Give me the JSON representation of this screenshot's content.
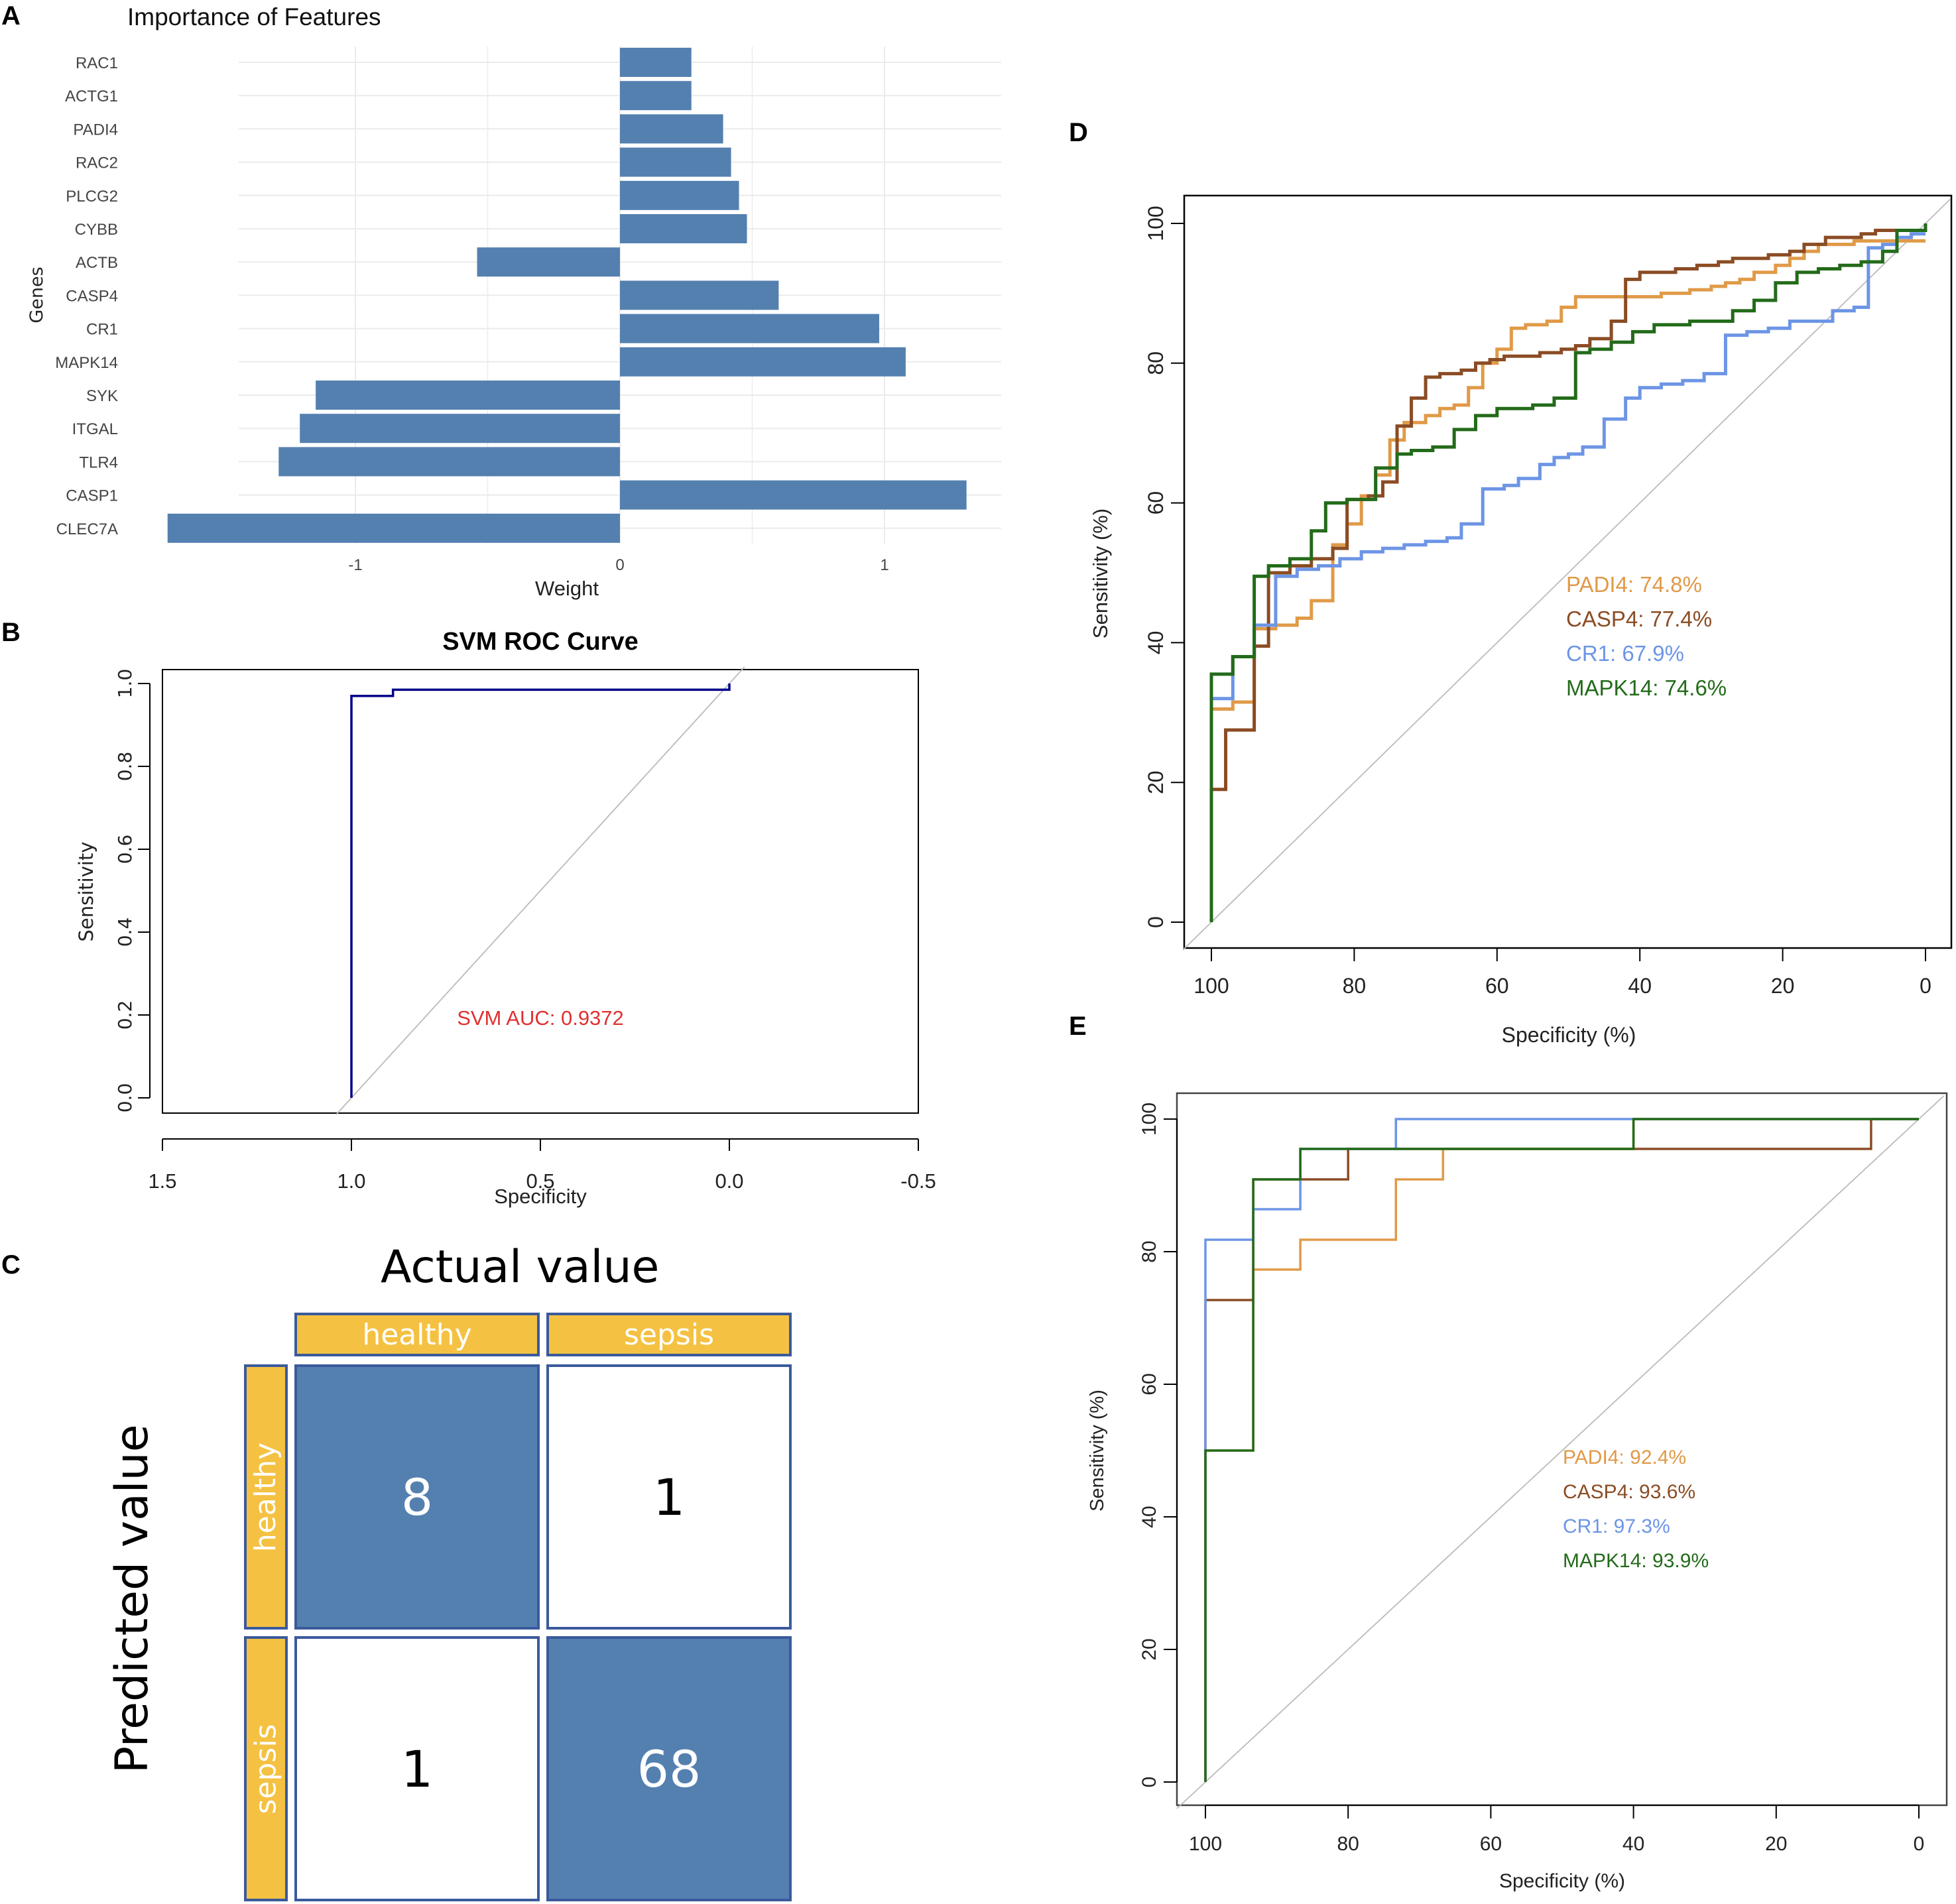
{
  "panels": {
    "A": "A",
    "B": "B",
    "C": "C",
    "D": "D",
    "E": "E"
  },
  "chart_data": [
    {
      "id": "A",
      "type": "bar",
      "orientation": "horizontal",
      "title": "Importance of Features",
      "xlabel": "Weight",
      "ylabel": "Genes",
      "categories": [
        "RAC1",
        "ACTG1",
        "PADI4",
        "RAC2",
        "PLCG2",
        "CYBB",
        "ACTB",
        "CASP4",
        "CR1",
        "MAPK14",
        "SYK",
        "ITGAL",
        "TLR4",
        "CASP1",
        "CLEC7A"
      ],
      "values": [
        0.27,
        0.27,
        0.39,
        0.42,
        0.45,
        0.48,
        -0.54,
        0.6,
        0.98,
        1.08,
        -1.15,
        -1.21,
        -1.29,
        1.31,
        -1.71
      ],
      "xticks": [
        -1,
        0,
        1
      ],
      "xtick_labels": [
        "-1",
        "0",
        "1"
      ],
      "xlim": [
        -1.8,
        1.45
      ],
      "grid": true,
      "bar_color": "#5480b0"
    },
    {
      "id": "B",
      "type": "line",
      "title": "SVM ROC Curve",
      "xlabel": "Specificity",
      "ylabel": "Sensitivity",
      "xlim": [
        1.5,
        -0.5
      ],
      "ylim": [
        0,
        1
      ],
      "xticks": [
        1.5,
        1.0,
        0.5,
        0.0,
        -0.5
      ],
      "xtick_labels": [
        "1.5",
        "1.0",
        "0.5",
        "0.0",
        "-0.5"
      ],
      "yticks": [
        0.0,
        0.2,
        0.4,
        0.6,
        0.8,
        1.0
      ],
      "ytick_labels": [
        "0.0",
        "0.2",
        "0.4",
        "0.6",
        "0.8",
        "1.0"
      ],
      "series": [
        {
          "name": "SVM",
          "color": "#00008b",
          "x": [
            1.0,
            1.0,
            0.89,
            0.89,
            0.0,
            0.0
          ],
          "y": [
            0.0,
            0.97,
            0.97,
            0.985,
            0.985,
            1.0
          ]
        }
      ],
      "reference_line": true,
      "annotation": {
        "text": "SVM AUC: 0.9372",
        "color": "#e03030"
      }
    },
    {
      "id": "C",
      "type": "table",
      "title": "Actual value",
      "ylabel": "Predicted value",
      "columns": [
        "healthy",
        "sepsis"
      ],
      "rows": [
        "healthy",
        "sepsis"
      ],
      "cells": [
        [
          8,
          1
        ],
        [
          1,
          68
        ]
      ],
      "highlight_color": "#5480b0",
      "header_color": "#f4c142"
    },
    {
      "id": "D",
      "type": "line",
      "xlabel": "Specificity (%)",
      "ylabel": "Sensitivity (%)",
      "xlim": [
        100,
        0
      ],
      "ylim": [
        0,
        100
      ],
      "xticks": [
        100,
        80,
        60,
        40,
        20,
        0
      ],
      "xtick_labels": [
        "100",
        "80",
        "60",
        "40",
        "20",
        "0"
      ],
      "yticks": [
        0,
        20,
        40,
        60,
        80,
        100
      ],
      "ytick_labels": [
        "0",
        "20",
        "40",
        "60",
        "80",
        "100"
      ],
      "reference_line": true,
      "series": [
        {
          "name": "PADI4",
          "label": "PADI4: 74.8%",
          "auc": 74.8,
          "color": "#e09a48",
          "x": [
            100,
            100,
            97,
            97,
            94,
            94,
            91,
            91,
            88,
            88,
            86,
            86,
            83,
            83,
            81,
            81,
            79,
            79,
            77,
            77,
            75,
            75,
            73,
            73,
            70,
            70,
            68,
            68,
            66,
            66,
            64,
            64,
            62,
            62,
            60,
            60,
            58,
            58,
            56,
            56,
            53,
            53,
            51,
            51,
            49,
            49,
            47,
            47,
            44,
            44,
            42,
            42,
            39,
            39,
            37,
            37,
            35,
            35,
            33,
            33,
            30,
            30,
            28,
            28,
            26,
            26,
            24,
            24,
            21,
            21,
            19,
            19,
            17,
            17,
            15,
            15,
            12,
            12,
            10,
            10,
            8,
            8,
            6,
            6,
            3,
            3,
            0
          ],
          "y": [
            0,
            30.5,
            30.5,
            31.5,
            31.5,
            42,
            42,
            42.5,
            42.5,
            43.5,
            43.5,
            46,
            46,
            54,
            54,
            57,
            57,
            61,
            61,
            64,
            64,
            69,
            69,
            71.5,
            71.5,
            72.5,
            72.5,
            73.5,
            73.5,
            74,
            74,
            76.5,
            76.5,
            80,
            80,
            82,
            82,
            85,
            85,
            85.5,
            85.5,
            86,
            86,
            88,
            88,
            89.5,
            89.5,
            89.5,
            89.5,
            89.5,
            89.5,
            89.5,
            89.5,
            89.5,
            89.5,
            90,
            90,
            90,
            90,
            90.5,
            90.5,
            91,
            91,
            91.5,
            91.5,
            92,
            92,
            93,
            93,
            94,
            94,
            95,
            95,
            96,
            96,
            97,
            97,
            97,
            97,
            97.5,
            97.5,
            97.5,
            97.5,
            97.5,
            97.5,
            97.5,
            97.5
          ]
        },
        {
          "name": "CASP4",
          "label": "CASP4: 77.4%",
          "auc": 77.4,
          "color": "#8b4c24",
          "x": [
            100,
            100,
            98,
            98,
            94,
            94,
            92,
            92,
            89,
            89,
            86,
            86,
            83,
            83,
            81,
            81,
            78,
            78,
            76,
            76,
            74,
            74,
            72,
            72,
            70,
            70,
            68,
            68,
            65,
            65,
            63,
            63,
            61,
            61,
            59,
            59,
            56,
            56,
            54,
            54,
            51,
            51,
            49,
            49,
            47,
            47,
            44,
            44,
            42,
            42,
            40,
            40,
            38,
            38,
            35,
            35,
            32,
            32,
            29,
            29,
            27,
            27,
            24,
            24,
            22,
            22,
            19,
            19,
            17,
            17,
            14,
            14,
            12,
            12,
            9,
            9,
            7,
            7,
            4,
            4,
            2,
            2,
            0
          ],
          "y": [
            0,
            19,
            19,
            27.5,
            27.5,
            39.5,
            39.5,
            50,
            50,
            51,
            51,
            52,
            52,
            53.5,
            53.5,
            60.5,
            60.5,
            61,
            61,
            63,
            63,
            71,
            71,
            75,
            75,
            78,
            78,
            78.5,
            78.5,
            79,
            79,
            80,
            80,
            80.5,
            80.5,
            81,
            81,
            81,
            81,
            81.5,
            81.5,
            82,
            82,
            82.5,
            82.5,
            83.5,
            83.5,
            86,
            86,
            92,
            92,
            93,
            93,
            93,
            93,
            93.5,
            93.5,
            94,
            94,
            94.5,
            94.5,
            95,
            95,
            95,
            95,
            95.5,
            95.5,
            96,
            96,
            97,
            97,
            98,
            98,
            98,
            98,
            98.5,
            98.5,
            99,
            99,
            99,
            99,
            99,
            99
          ]
        },
        {
          "name": "CR1",
          "label": "CR1: 67.9%",
          "auc": 67.9,
          "color": "#6d95e6",
          "x": [
            100,
            100,
            97,
            97,
            94,
            94,
            91,
            91,
            88,
            88,
            85,
            85,
            82,
            82,
            79,
            79,
            76,
            76,
            73,
            73,
            70,
            70,
            67,
            67,
            65,
            65,
            62,
            62,
            59,
            59,
            57,
            57,
            54,
            54,
            52,
            52,
            50,
            50,
            48,
            48,
            45,
            45,
            42,
            42,
            40,
            40,
            37,
            37,
            34,
            34,
            31,
            31,
            28,
            28,
            25,
            25,
            22,
            22,
            19,
            19,
            16,
            16,
            13,
            13,
            10,
            10,
            8,
            8,
            6,
            6,
            4,
            4,
            2,
            2,
            0
          ],
          "y": [
            0,
            32,
            32,
            38,
            38,
            42.5,
            42.5,
            49.5,
            49.5,
            50.5,
            50.5,
            51,
            51,
            52,
            52,
            53,
            53,
            53.5,
            53.5,
            54,
            54,
            54.5,
            54.5,
            55,
            55,
            57,
            57,
            62,
            62,
            62.5,
            62.5,
            63.5,
            63.5,
            65.5,
            65.5,
            66.5,
            66.5,
            67,
            67,
            68,
            68,
            72,
            72,
            75,
            75,
            76.5,
            76.5,
            77,
            77,
            77.5,
            77.5,
            78.5,
            78.5,
            84,
            84,
            84.5,
            84.5,
            85,
            85,
            86,
            86,
            86,
            86,
            87.5,
            87.5,
            88,
            88,
            96.5,
            96.5,
            97,
            97,
            98,
            98,
            98.5,
            98.5
          ]
        },
        {
          "name": "MAPK14",
          "label": "MAPK14: 74.6%",
          "auc": 74.6,
          "color": "#236b1a",
          "x": [
            100,
            100,
            97,
            97,
            94,
            94,
            92,
            92,
            89,
            89,
            86,
            86,
            84,
            84,
            81,
            81,
            77,
            77,
            74,
            74,
            72,
            72,
            69,
            69,
            66,
            66,
            63,
            63,
            60,
            60,
            57,
            57,
            55,
            55,
            52,
            52,
            49,
            49,
            47,
            47,
            44,
            44,
            41,
            41,
            38,
            38,
            35,
            35,
            33,
            33,
            30,
            30,
            27,
            27,
            24,
            24,
            21,
            21,
            18,
            18,
            15,
            15,
            12,
            12,
            9,
            9,
            6,
            6,
            4,
            4,
            2,
            2,
            0,
            0
          ],
          "y": [
            0,
            35.5,
            35.5,
            38,
            38,
            49.5,
            49.5,
            51,
            51,
            52,
            52,
            56,
            56,
            60,
            60,
            60.5,
            60.5,
            65,
            65,
            67,
            67,
            67.5,
            67.5,
            68,
            68,
            70.5,
            70.5,
            72.5,
            72.5,
            73.5,
            73.5,
            73.5,
            73.5,
            74,
            74,
            75,
            75,
            81.5,
            81.5,
            82,
            82,
            83,
            83,
            84.5,
            84.5,
            85.5,
            85.5,
            85.5,
            85.5,
            86,
            86,
            86,
            86,
            87.5,
            87.5,
            89,
            89,
            91.5,
            91.5,
            93,
            93,
            93.5,
            93.5,
            94,
            94,
            94.5,
            94.5,
            96,
            96,
            99,
            99,
            99,
            99,
            100
          ]
        }
      ]
    },
    {
      "id": "E",
      "type": "line",
      "xlabel": "Specificity (%)",
      "ylabel": "Sensitivity (%)",
      "xlim": [
        100,
        0
      ],
      "ylim": [
        0,
        100
      ],
      "xticks": [
        100,
        80,
        60,
        40,
        20,
        0
      ],
      "xtick_labels": [
        "100",
        "80",
        "60",
        "40",
        "20",
        "0"
      ],
      "yticks": [
        0,
        20,
        40,
        60,
        80,
        100
      ],
      "ytick_labels": [
        "0",
        "20",
        "40",
        "60",
        "80",
        "100"
      ],
      "reference_line": true,
      "series": [
        {
          "name": "PADI4",
          "label": "PADI4: 92.4%",
          "auc": 92.4,
          "color": "#e09a48",
          "x": [
            100,
            100,
            93.3,
            93.3,
            86.7,
            86.7,
            73.3,
            73.3,
            66.7,
            66.7,
            40,
            40,
            0
          ],
          "y": [
            0,
            50,
            50,
            77.3,
            77.3,
            81.8,
            81.8,
            90.9,
            90.9,
            95.5,
            95.5,
            100,
            100
          ]
        },
        {
          "name": "CASP4",
          "label": "CASP4: 93.6%",
          "auc": 93.6,
          "color": "#8b4c24",
          "x": [
            100,
            100,
            93.3,
            93.3,
            80,
            80,
            6.7,
            6.7,
            0
          ],
          "y": [
            0,
            72.7,
            72.7,
            90.9,
            90.9,
            95.5,
            95.5,
            100,
            100
          ]
        },
        {
          "name": "CR1",
          "label": "CR1: 97.3%",
          "auc": 97.3,
          "color": "#6d95e6",
          "x": [
            100,
            100,
            93.3,
            93.3,
            86.7,
            86.7,
            73.3,
            73.3,
            0
          ],
          "y": [
            0,
            81.8,
            81.8,
            86.4,
            86.4,
            95.5,
            95.5,
            100,
            100
          ]
        },
        {
          "name": "MAPK14",
          "label": "MAPK14: 93.9%",
          "auc": 93.9,
          "color": "#236b1a",
          "x": [
            100,
            100,
            93.3,
            93.3,
            86.7,
            86.7,
            40,
            40,
            0
          ],
          "y": [
            0,
            50,
            50,
            90.9,
            90.9,
            95.5,
            95.5,
            100,
            100
          ]
        }
      ]
    }
  ]
}
